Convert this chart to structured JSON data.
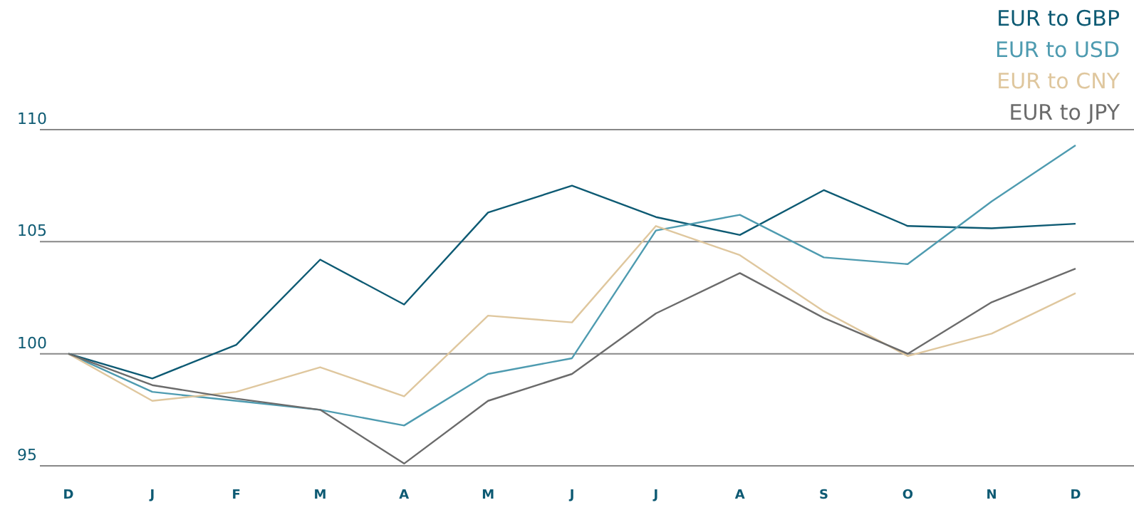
{
  "chart_data": {
    "type": "line",
    "categories": [
      "D",
      "J",
      "F",
      "M",
      "A",
      "M",
      "J",
      "J",
      "A",
      "S",
      "O",
      "N",
      "D"
    ],
    "series": [
      {
        "name": "EUR to GBP",
        "color": "#0d5a73",
        "values": [
          100,
          98.9,
          100.4,
          104.2,
          102.2,
          106.3,
          107.5,
          106.1,
          105.3,
          107.3,
          105.7,
          105.6,
          105.8
        ]
      },
      {
        "name": "EUR to USD",
        "color": "#4e9bb0",
        "values": [
          100,
          98.3,
          97.9,
          97.5,
          96.8,
          99.1,
          99.8,
          105.5,
          106.2,
          104.3,
          104.0,
          106.8,
          109.3
        ]
      },
      {
        "name": "EUR to CNY",
        "color": "#dfc79e",
        "values": [
          100,
          97.9,
          98.3,
          99.4,
          98.1,
          101.7,
          101.4,
          105.7,
          104.4,
          101.9,
          99.9,
          100.9,
          102.7
        ]
      },
      {
        "name": "EUR to JPY",
        "color": "#6b6b6b",
        "values": [
          100,
          98.6,
          98.0,
          97.5,
          95.1,
          97.9,
          99.1,
          101.8,
          103.6,
          101.6,
          100.0,
          102.3,
          103.8
        ]
      }
    ],
    "ylim": [
      95,
      110
    ],
    "yticks": [
      95,
      100,
      105,
      110
    ],
    "grid": "y",
    "legend": "top right",
    "marker": "none",
    "line_style": "solid"
  }
}
